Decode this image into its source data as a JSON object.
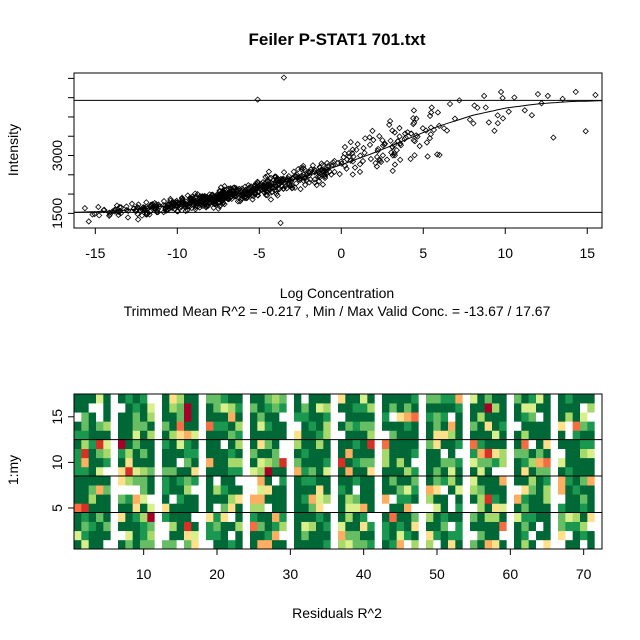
{
  "chart_data": [
    {
      "type": "scatter",
      "title": "Feiler P-STAT1 701.txt",
      "xlabel": "Log Concentration",
      "subtitle": "Trimmed Mean R^2 = -0.217 , Min / Max Valid Conc. = -13.67 / 17.67",
      "ylabel": "Intensity",
      "xlim": [
        -16.3,
        15.9
      ],
      "ylim": [
        1120,
        5140
      ],
      "x_ticks": [
        -15,
        -10,
        -5,
        0,
        5,
        10,
        15
      ],
      "y_ticks": [
        1500,
        3000
      ],
      "hlines": [
        1525,
        4430
      ],
      "marker": "open-diamond",
      "curve": {
        "description": "fitted sigmoid",
        "x": [
          -16,
          -14,
          -12,
          -10,
          -8,
          -6,
          -4,
          -2,
          0,
          2,
          4,
          6,
          8,
          10,
          12,
          14,
          15.9
        ],
        "y": [
          1530,
          1560,
          1620,
          1730,
          1870,
          2040,
          2250,
          2480,
          2760,
          3070,
          3420,
          3770,
          4040,
          4230,
          4340,
          4400,
          4420
        ]
      },
      "outliers": [
        {
          "x": -3.5,
          "y": 5020
        },
        {
          "x": -5.1,
          "y": 4450
        },
        {
          "x": 14.3,
          "y": 4650
        },
        {
          "x": 15.5,
          "y": 4570
        },
        {
          "x": 13.5,
          "y": 4470
        },
        {
          "x": -3.7,
          "y": 1250
        },
        {
          "x": -15.4,
          "y": 1290
        },
        {
          "x": 7.2,
          "y": 4430
        }
      ]
    },
    {
      "type": "heatmap",
      "xlabel": "Residuals R^2",
      "ylabel": "1:my",
      "xlim": [
        0.5,
        72.5
      ],
      "ylim": [
        0.5,
        17.5
      ],
      "x_ticks": [
        10,
        20,
        30,
        40,
        50,
        60,
        70
      ],
      "y_ticks": [
        5,
        10,
        15
      ],
      "n_columns": 72,
      "n_rows": 17,
      "row_dividers": [
        4.5,
        8.5,
        12.5
      ],
      "column_groups": 12,
      "palette": [
        "#006837",
        "#1a9850",
        "#66bd63",
        "#a6d96a",
        "#d9ef8b",
        "#fee08b",
        "#fdae61",
        "#f46d43",
        "#d73027",
        "#a50026"
      ]
    }
  ]
}
